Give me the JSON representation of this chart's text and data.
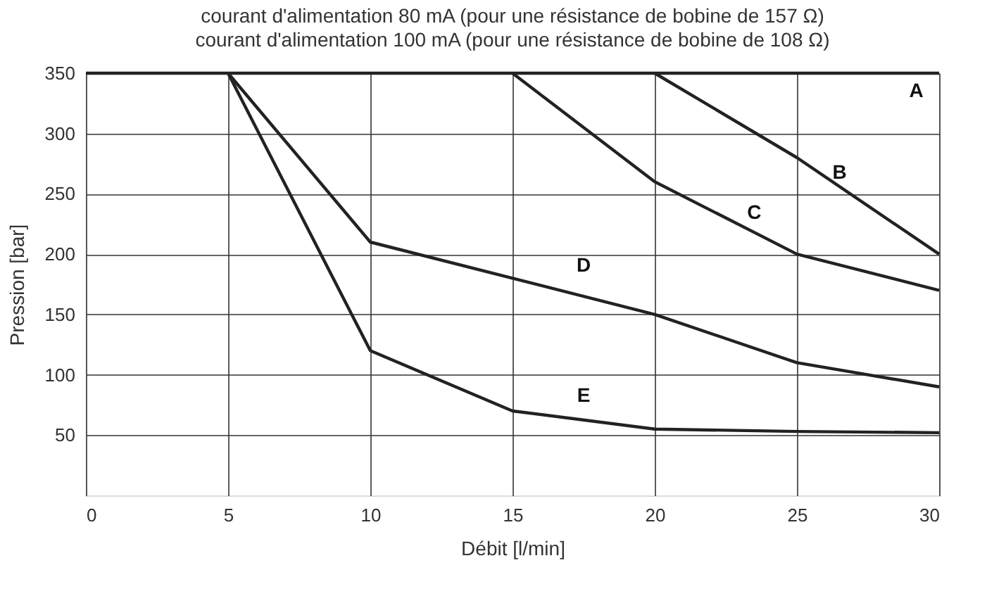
{
  "chart_data": {
    "type": "line",
    "title": "courant d'alimentation 80 mA (pour une résistance de bobine de 157 Ω)",
    "subtitle": "courant d'alimentation 100 mA (pour une résistance de bobine de 108 Ω)",
    "xlabel": "Débit [l/min]",
    "ylabel": "Pression [bar]",
    "xlim": [
      0,
      30
    ],
    "xticks": [
      0,
      5,
      10,
      15,
      20,
      25,
      30
    ],
    "ylim": [
      0,
      350
    ],
    "yticks": [
      50,
      100,
      150,
      200,
      250,
      300,
      350
    ],
    "grid": true,
    "marker": "none",
    "line_style": "solid",
    "series": [
      {
        "name": "A",
        "color": "#222222",
        "x": [
          0,
          30
        ],
        "values": [
          350,
          350
        ]
      },
      {
        "name": "B",
        "color": "#222222",
        "x": [
          20,
          25,
          30
        ],
        "values": [
          350,
          280,
          200
        ]
      },
      {
        "name": "C",
        "color": "#222222",
        "x": [
          15,
          20,
          25,
          30
        ],
        "values": [
          350,
          260,
          200,
          170
        ]
      },
      {
        "name": "D",
        "color": "#222222",
        "x": [
          5,
          10,
          15,
          20,
          25,
          30
        ],
        "values": [
          350,
          210,
          180,
          150,
          110,
          90
        ]
      },
      {
        "name": "E",
        "color": "#222222",
        "x": [
          5,
          10,
          15,
          20,
          25,
          30
        ],
        "values": [
          350,
          120,
          70,
          55,
          53,
          52
        ]
      }
    ]
  }
}
